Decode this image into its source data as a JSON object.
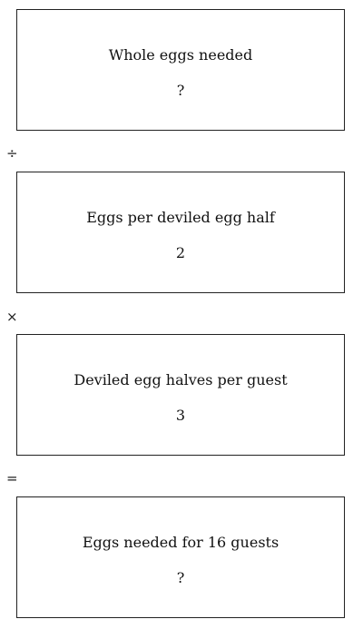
{
  "boxes": [
    {
      "label": "Whole eggs needed",
      "value": "?"
    },
    {
      "label": "Eggs per deviled egg half",
      "value": "2"
    },
    {
      "label": "Deviled egg halves per guest",
      "value": "3"
    },
    {
      "label": "Eggs needed for 16 guests",
      "value": "?"
    }
  ],
  "operators": [
    "÷",
    "×",
    "="
  ]
}
